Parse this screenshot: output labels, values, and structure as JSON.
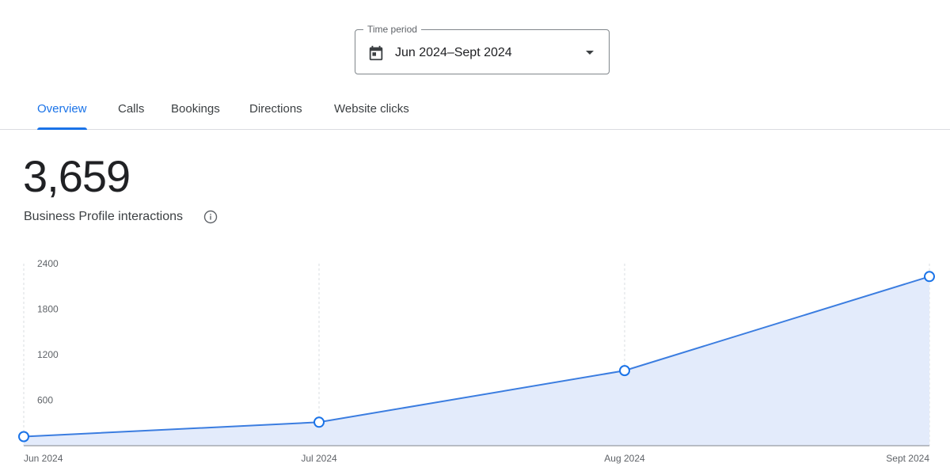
{
  "time_period": {
    "label": "Time period",
    "value": "Jun 2024–Sept 2024",
    "icon": "calendar-icon"
  },
  "tabs": [
    {
      "label": "Overview",
      "active": true
    },
    {
      "label": "Calls",
      "active": false
    },
    {
      "label": "Bookings",
      "active": false
    },
    {
      "label": "Directions",
      "active": false
    },
    {
      "label": "Website clicks",
      "active": false
    }
  ],
  "summary": {
    "total": "3,659",
    "label": "Business Profile interactions"
  },
  "colors": {
    "accent": "#1a73e8",
    "area_fill": "#e3ebfb",
    "line": "#3b7de0"
  },
  "chart_data": {
    "type": "area",
    "x": [
      "Jun 2024",
      "Jul 2024",
      "Aug 2024",
      "Sept 2024"
    ],
    "series": [
      {
        "values": [
          120,
          310,
          990,
          2230
        ]
      }
    ],
    "ylim": [
      0,
      2400
    ],
    "yticks": [
      "2400",
      "1800",
      "1200",
      "600"
    ],
    "grid": true
  }
}
